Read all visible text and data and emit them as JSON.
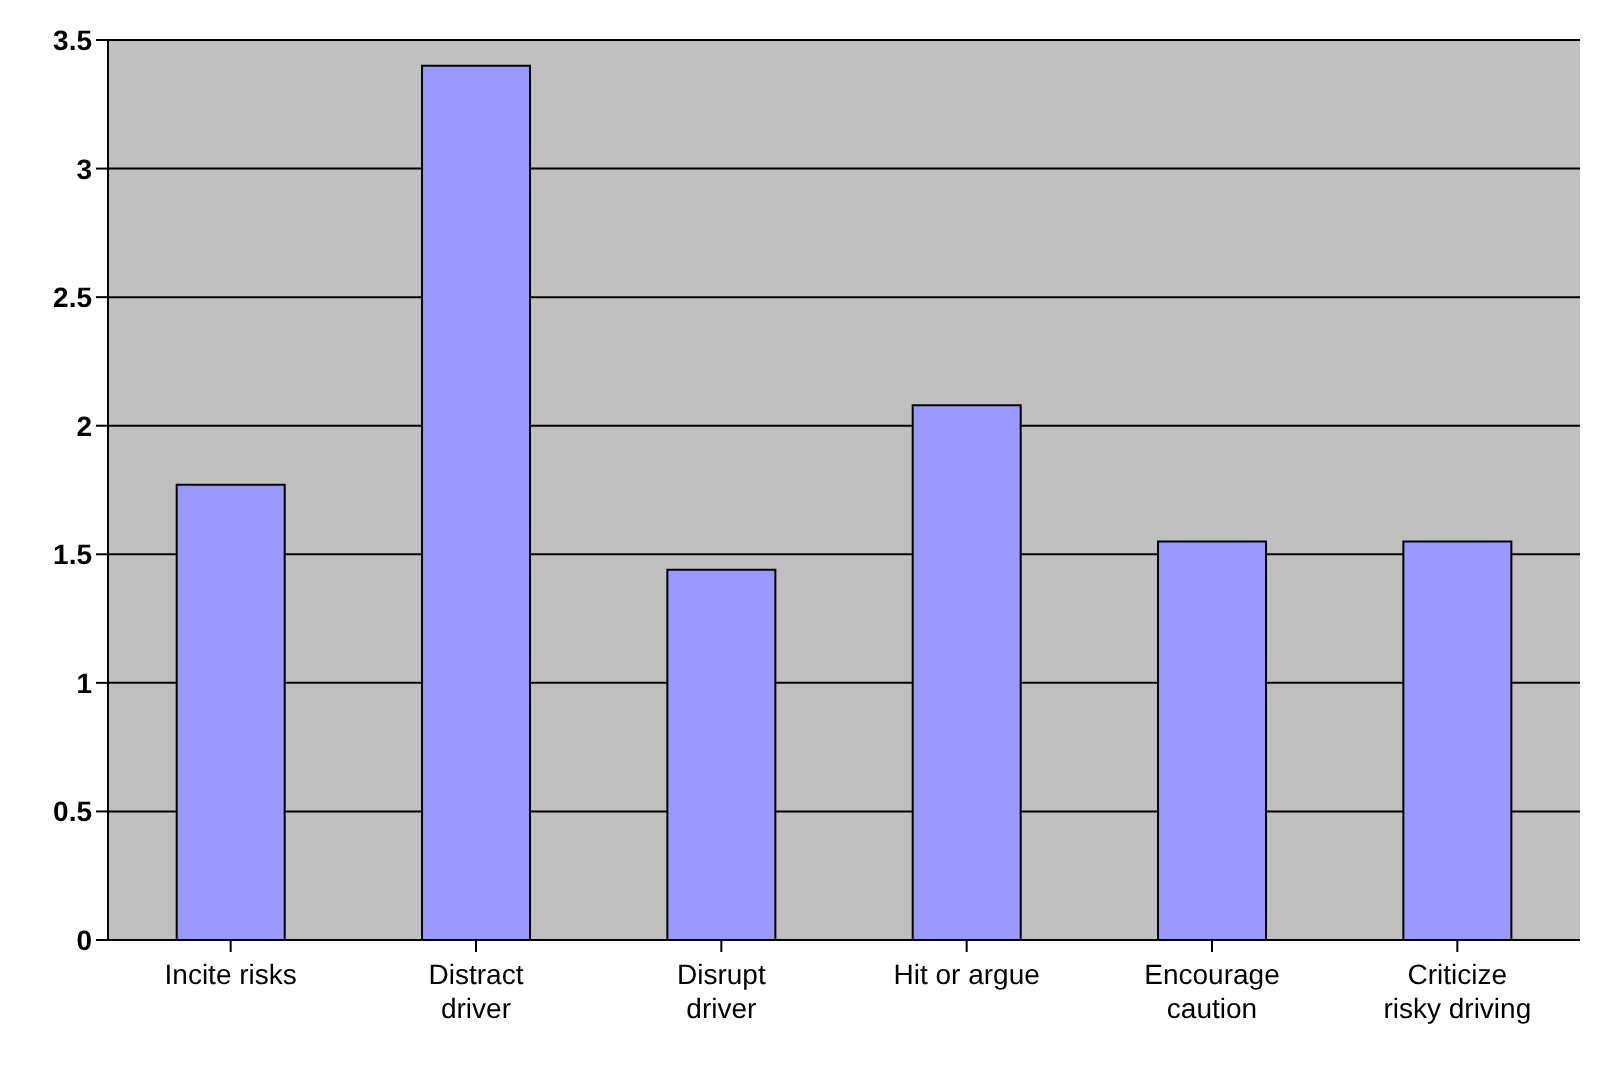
{
  "chart_data": {
    "type": "bar",
    "categories": [
      "Incite risks",
      "Distract driver",
      "Disrupt driver",
      "Hit or argue",
      "Encourage caution",
      "Criticize risky driving"
    ],
    "values": [
      1.77,
      3.4,
      1.44,
      2.08,
      1.55,
      1.55
    ],
    "color": "#9999ff",
    "ylim": [
      0,
      3.5
    ],
    "yticks": [
      0,
      0.5,
      1,
      1.5,
      2,
      2.5,
      3,
      3.5
    ],
    "grid": "y"
  }
}
